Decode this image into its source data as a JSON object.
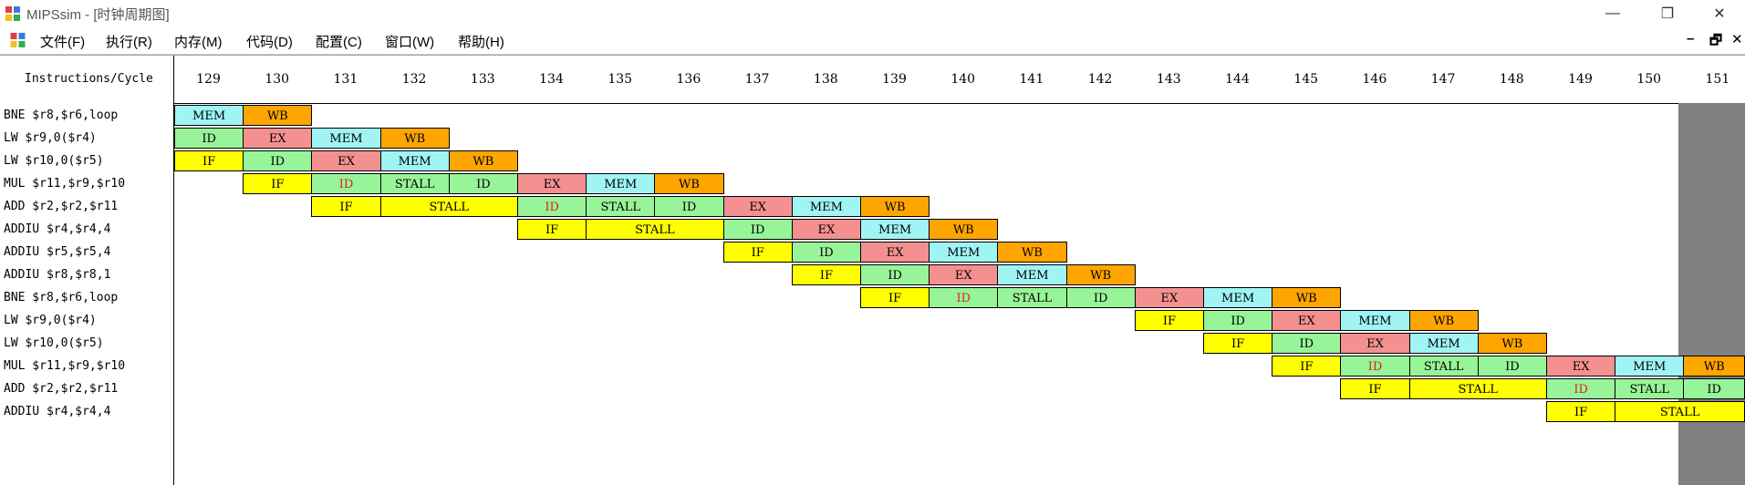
{
  "window": {
    "title": "MIPSsim - [时钟周期图]",
    "controls": {
      "minimize": "—",
      "maximize": "❐",
      "close": "✕"
    }
  },
  "menu": {
    "items": [
      "文件(F)",
      "执行(R)",
      "内存(M)",
      "代码(D)",
      "配置(C)",
      "窗口(W)",
      "帮助(H)"
    ],
    "mdi_controls": {
      "minimize": "–",
      "restore": "🗗",
      "close": "✕"
    }
  },
  "diagram": {
    "header_label": "Instructions/Cycle",
    "cycles": [
      "129",
      "130",
      "131",
      "132",
      "133",
      "134",
      "135",
      "136",
      "137",
      "138",
      "139",
      "140",
      "141",
      "142",
      "143",
      "144",
      "145",
      "146",
      "147",
      "148",
      "149",
      "150",
      "151"
    ],
    "instructions": [
      "BNE $r8,$r6,loop",
      "LW $r9,0($r4)",
      "LW $r10,0($r5)",
      "MUL $r11,$r9,$r10",
      "ADD $r2,$r2,$r11",
      "ADDIU $r4,$r4,4",
      "ADDIU $r5,$r5,4",
      "ADDIU $r8,$r8,1",
      "BNE $r8,$r6,loop",
      "LW $r9,0($r4)",
      "LW $r10,0($r5)",
      "MUL $r11,$r9,$r10",
      "ADD $r2,$r2,$r11",
      "ADDIU $r4,$r4,4"
    ],
    "colors": {
      "IF": "#ffff00",
      "ID": "#98f498",
      "EX": "#f49090",
      "MEM": "#a0f4f4",
      "WB": "#ffa500",
      "STALL_IF": "#ffff00",
      "STALL_ID": "#98f498",
      "red_text": "#e02020"
    },
    "stages": [
      [
        {
          "c": 0,
          "s": "MEM"
        },
        {
          "c": 1,
          "s": "WB"
        }
      ],
      [
        {
          "c": 0,
          "s": "ID"
        },
        {
          "c": 1,
          "s": "EX"
        },
        {
          "c": 2,
          "s": "MEM"
        },
        {
          "c": 3,
          "s": "WB"
        }
      ],
      [
        {
          "c": 0,
          "s": "IF"
        },
        {
          "c": 1,
          "s": "ID"
        },
        {
          "c": 2,
          "s": "EX"
        },
        {
          "c": 3,
          "s": "MEM"
        },
        {
          "c": 4,
          "s": "WB"
        }
      ],
      [
        {
          "c": 1,
          "s": "IF"
        },
        {
          "c": 2,
          "s": "ID",
          "red": true
        },
        {
          "c": 3,
          "s": "STALL",
          "k": "ID"
        },
        {
          "c": 4,
          "s": "ID"
        },
        {
          "c": 5,
          "s": "EX"
        },
        {
          "c": 6,
          "s": "MEM"
        },
        {
          "c": 7,
          "s": "WB"
        }
      ],
      [
        {
          "c": 2,
          "s": "IF"
        },
        {
          "c": 3,
          "s": "STALL",
          "k": "IF",
          "w": 2
        },
        {
          "c": 5,
          "s": "ID",
          "red": true
        },
        {
          "c": 6,
          "s": "STALL",
          "k": "ID"
        },
        {
          "c": 7,
          "s": "ID"
        },
        {
          "c": 8,
          "s": "EX"
        },
        {
          "c": 9,
          "s": "MEM"
        },
        {
          "c": 10,
          "s": "WB"
        }
      ],
      [
        {
          "c": 5,
          "s": "IF"
        },
        {
          "c": 6,
          "s": "STALL",
          "k": "IF",
          "w": 2
        },
        {
          "c": 8,
          "s": "ID"
        },
        {
          "c": 9,
          "s": "EX"
        },
        {
          "c": 10,
          "s": "MEM"
        },
        {
          "c": 11,
          "s": "WB"
        }
      ],
      [
        {
          "c": 8,
          "s": "IF"
        },
        {
          "c": 9,
          "s": "ID"
        },
        {
          "c": 10,
          "s": "EX"
        },
        {
          "c": 11,
          "s": "MEM"
        },
        {
          "c": 12,
          "s": "WB"
        }
      ],
      [
        {
          "c": 9,
          "s": "IF"
        },
        {
          "c": 10,
          "s": "ID"
        },
        {
          "c": 11,
          "s": "EX"
        },
        {
          "c": 12,
          "s": "MEM"
        },
        {
          "c": 13,
          "s": "WB"
        }
      ],
      [
        {
          "c": 10,
          "s": "IF"
        },
        {
          "c": 11,
          "s": "ID",
          "red": true
        },
        {
          "c": 12,
          "s": "STALL",
          "k": "ID"
        },
        {
          "c": 13,
          "s": "ID"
        },
        {
          "c": 14,
          "s": "EX"
        },
        {
          "c": 15,
          "s": "MEM"
        },
        {
          "c": 16,
          "s": "WB"
        }
      ],
      [
        {
          "c": 14,
          "s": "IF"
        },
        {
          "c": 15,
          "s": "ID"
        },
        {
          "c": 16,
          "s": "EX"
        },
        {
          "c": 17,
          "s": "MEM"
        },
        {
          "c": 18,
          "s": "WB"
        }
      ],
      [
        {
          "c": 15,
          "s": "IF"
        },
        {
          "c": 16,
          "s": "ID"
        },
        {
          "c": 17,
          "s": "EX"
        },
        {
          "c": 18,
          "s": "MEM"
        },
        {
          "c": 19,
          "s": "WB"
        }
      ],
      [
        {
          "c": 16,
          "s": "IF"
        },
        {
          "c": 17,
          "s": "ID",
          "red": true
        },
        {
          "c": 18,
          "s": "STALL",
          "k": "ID"
        },
        {
          "c": 19,
          "s": "ID"
        },
        {
          "c": 20,
          "s": "EX"
        },
        {
          "c": 21,
          "s": "MEM"
        },
        {
          "c": 22,
          "s": "WB"
        }
      ],
      [
        {
          "c": 17,
          "s": "IF"
        },
        {
          "c": 18,
          "s": "STALL",
          "k": "IF",
          "w": 2
        },
        {
          "c": 20,
          "s": "ID",
          "red": true
        },
        {
          "c": 21,
          "s": "STALL",
          "k": "ID"
        },
        {
          "c": 22,
          "s": "ID"
        }
      ],
      [
        {
          "c": 20,
          "s": "IF"
        },
        {
          "c": 21,
          "s": "STALL",
          "k": "IF",
          "w": 2
        }
      ]
    ]
  }
}
